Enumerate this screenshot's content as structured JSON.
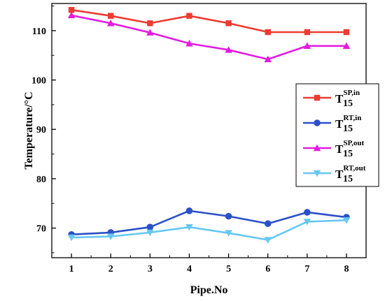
{
  "chart_data": {
    "type": "line",
    "xlabel": "Pipe.No",
    "ylabel": "Temperature/°C",
    "x": [
      1,
      2,
      3,
      4,
      5,
      6,
      7,
      8
    ],
    "xlim": [
      0.5,
      8.5
    ],
    "ylim": [
      64,
      115.5
    ],
    "yticks": [
      70,
      80,
      90,
      100,
      110
    ],
    "grid": false,
    "legend_position": "right",
    "series": [
      {
        "name": "T15SP,in",
        "legend": {
          "main": "T",
          "sub": "15",
          "sup": "SP,in"
        },
        "color": "#ee3b32",
        "marker": "square",
        "values": [
          114.2,
          113.0,
          111.5,
          113.0,
          111.5,
          109.7,
          109.7,
          109.7
        ]
      },
      {
        "name": "T15RT,in",
        "legend": {
          "main": "T",
          "sub": "15",
          "sup": "RT,in"
        },
        "color": "#2b50c8",
        "marker": "circle",
        "values": [
          68.7,
          69.1,
          70.2,
          73.5,
          72.4,
          70.9,
          73.2,
          72.2
        ]
      },
      {
        "name": "T15SP,out",
        "legend": {
          "main": "T",
          "sub": "15",
          "sup": "SP,out"
        },
        "color": "#e21de0",
        "marker": "triangle-up",
        "values": [
          113.1,
          111.5,
          109.6,
          107.4,
          106.1,
          104.2,
          106.9,
          106.9
        ]
      },
      {
        "name": "T15RT,out",
        "legend": {
          "main": "T",
          "sub": "15",
          "sup": "RT,out"
        },
        "color": "#66c8f2",
        "marker": "triangle-down",
        "values": [
          68.1,
          68.3,
          69.1,
          70.2,
          69.0,
          67.6,
          71.3,
          71.6
        ]
      }
    ]
  }
}
